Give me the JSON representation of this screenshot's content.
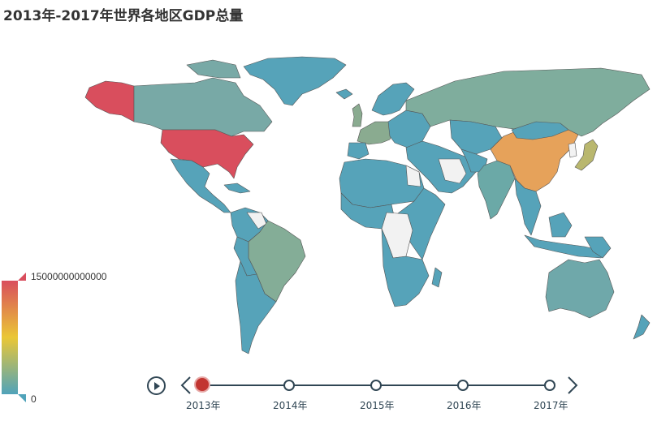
{
  "title": "2013年-2017年世界各地区GDP总量",
  "visual_map": {
    "max_label": "15000000000000",
    "min_label": "0",
    "colors": [
      "#d94e5d",
      "#eac736",
      "#50a3ba"
    ]
  },
  "timeline": {
    "years": [
      "2013年",
      "2014年",
      "2015年",
      "2016年",
      "2017年"
    ],
    "current_index": 0
  },
  "map": {
    "region_colors": {
      "united_states": "#d94e5d",
      "china": "#e6a25a",
      "alaska": "#d94e5d",
      "russia": "#7fad9d",
      "canada": "#78a9a6",
      "brazil": "#84ad97",
      "australia": "#6fa8aa",
      "india": "#6ba9a7",
      "japan": "#b9b76e",
      "europe_major": "#8aab90",
      "default": "#56a3b9",
      "no_data": "#f2f2f2"
    }
  }
}
